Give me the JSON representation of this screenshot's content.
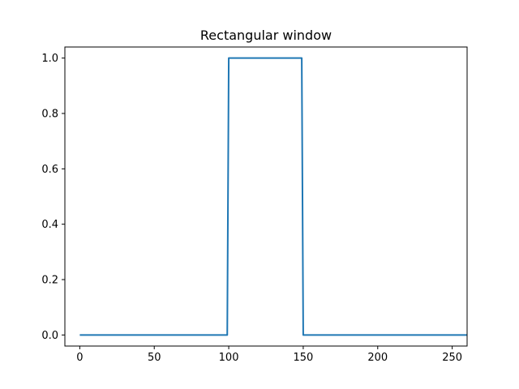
{
  "chart_data": {
    "type": "line",
    "title": "Rectangular window",
    "xlabel": "",
    "ylabel": "",
    "xlim": [
      -10,
      260
    ],
    "ylim": [
      -0.04,
      1.04
    ],
    "x_ticks": [
      0,
      50,
      100,
      150,
      200,
      250
    ],
    "x_tick_labels": [
      "0",
      "50",
      "100",
      "150",
      "200",
      "250"
    ],
    "y_ticks": [
      0.0,
      0.2,
      0.4,
      0.6,
      0.8,
      1.0
    ],
    "y_tick_labels": [
      "0.0",
      "0.2",
      "0.4",
      "0.6",
      "0.8",
      "1.0"
    ],
    "grid": false,
    "series": [
      {
        "color": "#1f77b4",
        "x": [
          0,
          99,
          100,
          149,
          150,
          260
        ],
        "y": [
          0,
          0,
          1,
          1,
          0,
          0
        ]
      }
    ]
  }
}
